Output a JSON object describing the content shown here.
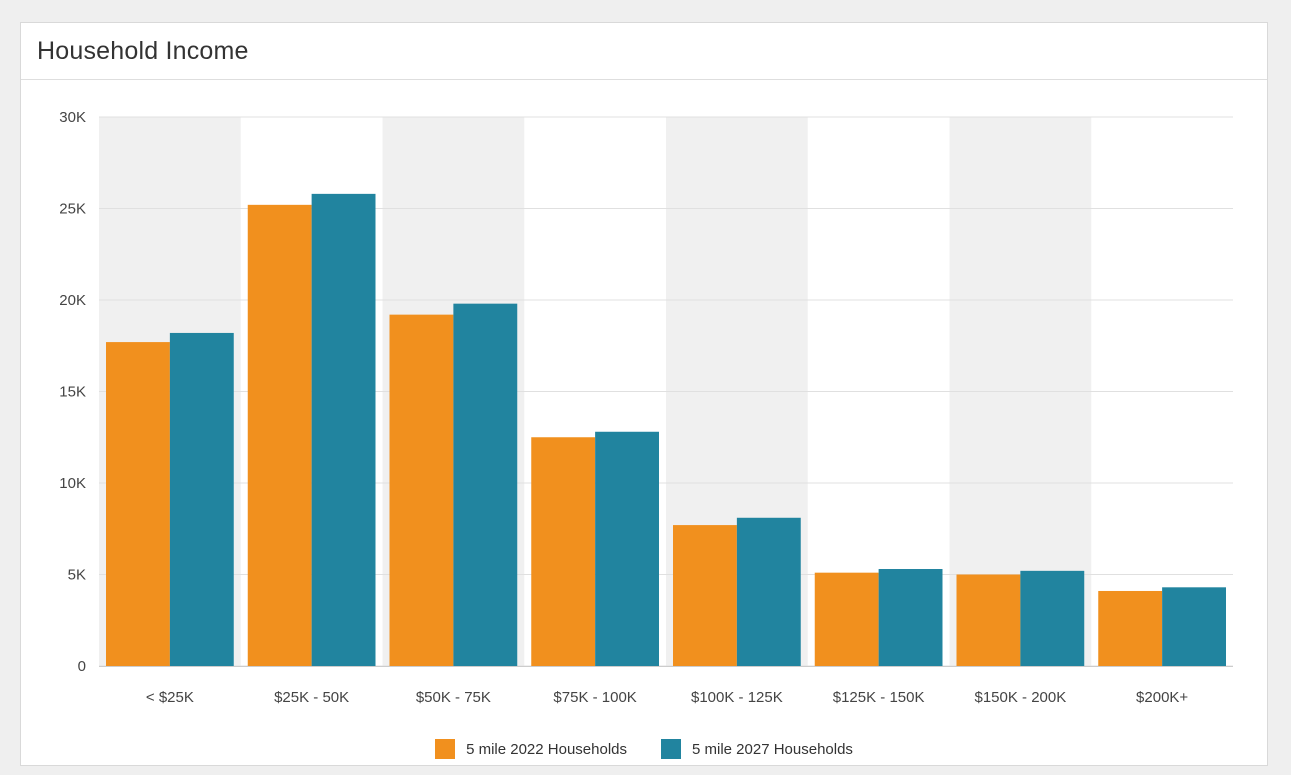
{
  "panel": {
    "title": "Household Income"
  },
  "colors": {
    "series_2022": "#f1901e",
    "series_2027": "#21849f",
    "band": "#f0f0f0",
    "grid": "#e0e0e0",
    "tick_text": "#444444"
  },
  "chart_data": {
    "type": "bar",
    "title": "Household Income",
    "categories": [
      "< $25K",
      "$25K - 50K",
      "$50K - 75K",
      "$75K - 100K",
      "$100K - 125K",
      "$125K - 150K",
      "$150K - 200K",
      "$200K+"
    ],
    "series": [
      {
        "name": "5 mile 2022 Households",
        "values": [
          17700,
          25200,
          19200,
          12500,
          7700,
          5100,
          5000,
          4100
        ]
      },
      {
        "name": "5 mile 2027 Households",
        "values": [
          18200,
          25800,
          19800,
          12800,
          8100,
          5300,
          5200,
          4300
        ]
      }
    ],
    "ylim": [
      0,
      30000
    ],
    "yticks": [
      0,
      5000,
      10000,
      15000,
      20000,
      25000,
      30000
    ],
    "ytick_labels": [
      "0",
      "5K",
      "10K",
      "15K",
      "20K",
      "25K",
      "30K"
    ],
    "xlabel": "",
    "ylabel": "",
    "grid": true,
    "alternating_bands": true,
    "legend": "bottom-center"
  }
}
